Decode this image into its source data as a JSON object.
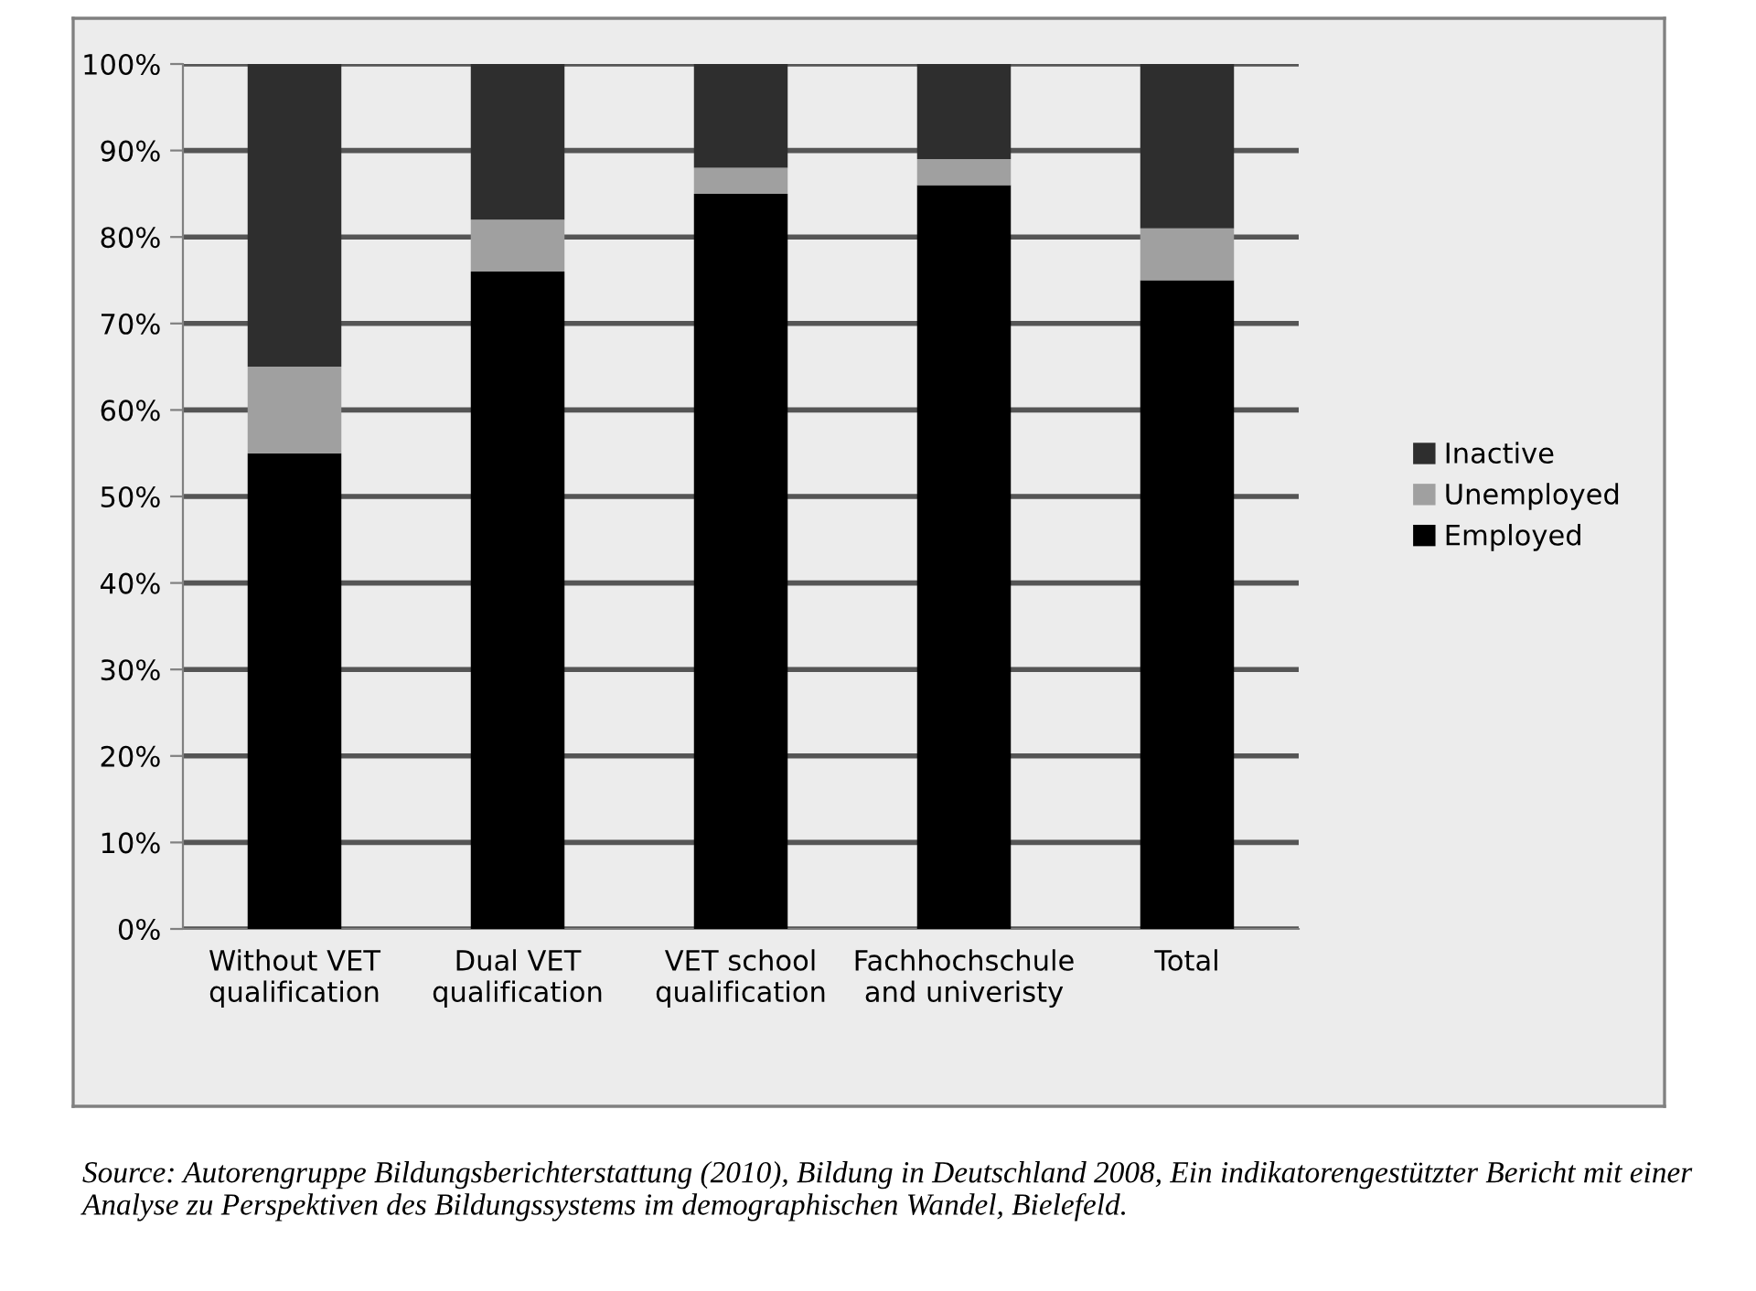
{
  "chart_data": {
    "type": "bar",
    "stacked": true,
    "categories": [
      "Without VET\nqualification",
      "Dual VET\nqualification",
      "VET school\nqualification",
      "Fachhochschule\nand univeristy",
      "Total"
    ],
    "series": [
      {
        "name": "Employed",
        "color": "#000000",
        "values": [
          55,
          76,
          85,
          86,
          75
        ]
      },
      {
        "name": "Unemployed",
        "color": "#a0a0a0",
        "values": [
          10,
          6,
          3,
          3,
          6
        ]
      },
      {
        "name": "Inactive",
        "color": "#2e2e2e",
        "values": [
          35,
          18,
          12,
          11,
          19
        ]
      }
    ],
    "ylim": [
      0,
      100
    ],
    "yticks": [
      {
        "value": 0,
        "label": "0%"
      },
      {
        "value": 10,
        "label": "10%"
      },
      {
        "value": 20,
        "label": "20%"
      },
      {
        "value": 30,
        "label": "30%"
      },
      {
        "value": 40,
        "label": "40%"
      },
      {
        "value": 50,
        "label": "50%"
      },
      {
        "value": 60,
        "label": "60%"
      },
      {
        "value": 70,
        "label": "70%"
      },
      {
        "value": 80,
        "label": "80%"
      },
      {
        "value": 90,
        "label": "90%"
      },
      {
        "value": 100,
        "label": "100%"
      }
    ],
    "grid": "y",
    "legend": "right",
    "annotations": [
      "Source: Autorengruppe Bildungsberichterstattung (2010), Bildung in Deutschland 2008, Ein indikatorengestützter Bericht mit einer Analyse zu Perspektiven des Bildungssystems im demographischen Wandel, Bielefeld."
    ]
  }
}
